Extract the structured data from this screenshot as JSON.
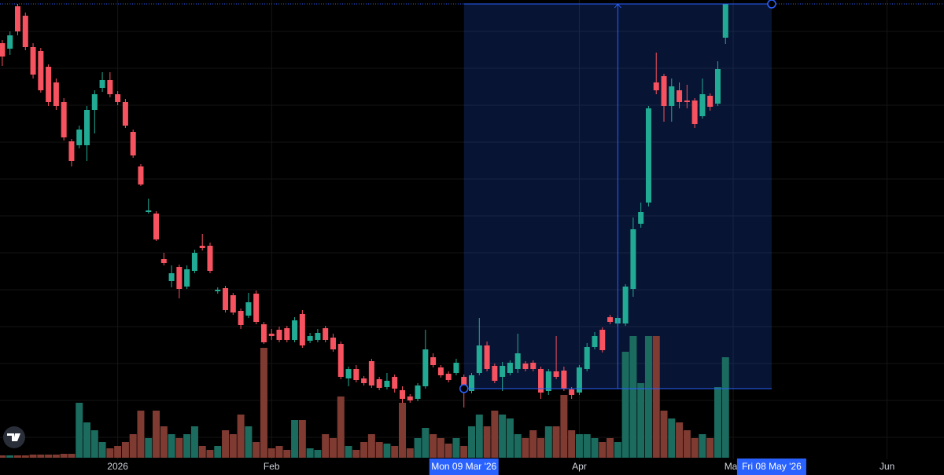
{
  "chart_data": {
    "type": "candlestick",
    "x": [
      0,
      1,
      2,
      3,
      4,
      5,
      6,
      7,
      8,
      9,
      10,
      11,
      12,
      13,
      14,
      15,
      16,
      17,
      18,
      19,
      20,
      21,
      22,
      23,
      24,
      25,
      26,
      27,
      28,
      29,
      30,
      31,
      32,
      33,
      34,
      35,
      36,
      37,
      38,
      39,
      40,
      41,
      42,
      43,
      44,
      45,
      46,
      47,
      48,
      49,
      50,
      51,
      52,
      53,
      54,
      55,
      56,
      57,
      58,
      59,
      60,
      61,
      62,
      63,
      64,
      65,
      66,
      67,
      68,
      69,
      70,
      71,
      72,
      73,
      74,
      75,
      76,
      77,
      78,
      79,
      80,
      81,
      82,
      83,
      84,
      85,
      86,
      87,
      88,
      89,
      90,
      91,
      92,
      93,
      94
    ],
    "open": [
      550,
      543,
      597,
      585,
      545,
      540,
      520,
      500,
      475,
      425,
      420,
      420,
      465,
      493,
      503,
      485,
      475,
      437,
      393,
      335,
      333,
      275,
      247,
      265,
      240,
      260,
      292,
      292,
      234,
      238,
      229,
      209,
      203,
      231,
      192,
      180,
      185,
      187,
      172,
      205,
      171,
      172,
      187,
      175,
      167,
      123,
      135,
      123,
      145,
      122,
      112,
      125,
      108,
      100,
      97,
      113,
      150,
      137,
      129,
      130,
      125,
      107,
      130,
      165,
      139,
      125,
      130,
      135,
      142,
      143,
      135,
      107,
      132,
      133,
      109,
      105,
      135,
      163,
      185,
      201,
      193,
      193,
      237,
      320,
      347,
      500,
      508,
      470,
      490,
      477,
      477,
      457,
      483,
      473,
      557
    ],
    "high": [
      554,
      565,
      600,
      589,
      550,
      544,
      523,
      505,
      480,
      428,
      445,
      470,
      490,
      513,
      513,
      489,
      479,
      440,
      396,
      352,
      336,
      283,
      267,
      268,
      267,
      287,
      307,
      296,
      239,
      241,
      232,
      212,
      232,
      235,
      195,
      186,
      189,
      190,
      201,
      210,
      181,
      186,
      190,
      180,
      170,
      138,
      140,
      126,
      148,
      125,
      130,
      128,
      113,
      103,
      117,
      185,
      155,
      140,
      132,
      148,
      128,
      130,
      200,
      170,
      142,
      144,
      146,
      180,
      145,
      146,
      138,
      135,
      177,
      138,
      112,
      140,
      168,
      182,
      188,
      204,
      203,
      243,
      328,
      347,
      470,
      538,
      511,
      505,
      500,
      497,
      480,
      505,
      486,
      527,
      600
    ],
    "low": [
      521,
      535,
      560,
      541,
      505,
      487,
      470,
      465,
      426,
      393,
      416,
      400,
      435,
      488,
      481,
      471,
      442,
      404,
      368,
      333,
      298,
      267,
      239,
      225,
      237,
      257,
      286,
      257,
      231,
      207,
      204,
      186,
      200,
      192,
      167,
      172,
      169,
      169,
      169,
      162,
      168,
      169,
      169,
      157,
      122,
      113,
      118,
      114,
      111,
      108,
      109,
      105,
      92,
      92,
      94,
      110,
      137,
      124,
      118,
      127,
      86,
      104,
      127,
      132,
      117,
      107,
      127,
      130,
      132,
      132,
      97,
      102,
      122,
      107,
      97,
      102,
      132,
      160,
      156,
      192,
      190,
      190,
      227,
      315,
      342,
      485,
      450,
      450,
      467,
      467,
      442,
      454,
      464,
      470,
      549
    ],
    "close": [
      533,
      560,
      565,
      545,
      510,
      490,
      475,
      470,
      430,
      400,
      440,
      465,
      485,
      503,
      485,
      475,
      445,
      407,
      370,
      337,
      300,
      270,
      257,
      237,
      262,
      283,
      289,
      260,
      236,
      210,
      207,
      191,
      220,
      195,
      169,
      177,
      172,
      172,
      197,
      165,
      177,
      181,
      172,
      160,
      125,
      135,
      121,
      117,
      114,
      111,
      120,
      110,
      97,
      95,
      114,
      160,
      140,
      127,
      121,
      143,
      111,
      127,
      165,
      135,
      120,
      139,
      143,
      155,
      135,
      135,
      105,
      132,
      125,
      110,
      102,
      137,
      163,
      177,
      159,
      195,
      200,
      240,
      313,
      335,
      467,
      490,
      470,
      495,
      475,
      475,
      447,
      485,
      469,
      517,
      600
    ],
    "volume": [
      3,
      3,
      3,
      3,
      4,
      4,
      4,
      4,
      5,
      5,
      70,
      45,
      35,
      20,
      12,
      15,
      20,
      30,
      60,
      25,
      60,
      40,
      30,
      25,
      30,
      40,
      15,
      10,
      15,
      35,
      30,
      55,
      40,
      20,
      140,
      12,
      15,
      10,
      48,
      48,
      12,
      10,
      30,
      25,
      78,
      15,
      10,
      20,
      30,
      20,
      18,
      15,
      70,
      12,
      25,
      38,
      30,
      25,
      18,
      25,
      15,
      40,
      55,
      40,
      60,
      55,
      50,
      30,
      25,
      35,
      25,
      40,
      40,
      80,
      35,
      30,
      30,
      25,
      20,
      25,
      20,
      135,
      155,
      95,
      155,
      155,
      60,
      50,
      45,
      35,
      25,
      30,
      25,
      90,
      128
    ],
    "up_color": "#22ab94",
    "down_color": "#f7525f",
    "volume_up_color": "#1b6b5f",
    "volume_down_color": "#7f3b32",
    "xlim": [
      -0.3,
      122.4
    ],
    "ylim": [
      0,
      605
    ],
    "volume_ylim": [
      0,
      583
    ],
    "xticks": [
      {
        "value": 15,
        "label": "2026"
      },
      {
        "value": 35,
        "label": "Feb"
      },
      {
        "value": 75,
        "label": "Apr"
      },
      {
        "value": 95,
        "label": "May"
      },
      {
        "value": 115,
        "label": "Jun"
      }
    ],
    "range_labels": [
      {
        "value": 60,
        "label": "Mon 09 Mar '26"
      },
      {
        "value": 100,
        "label": "Fri 08 May '26"
      }
    ],
    "measure": {
      "xlim": [
        60,
        100
      ],
      "ylim": [
        110,
        600
      ],
      "color": "#2962ff"
    },
    "grid": true
  }
}
